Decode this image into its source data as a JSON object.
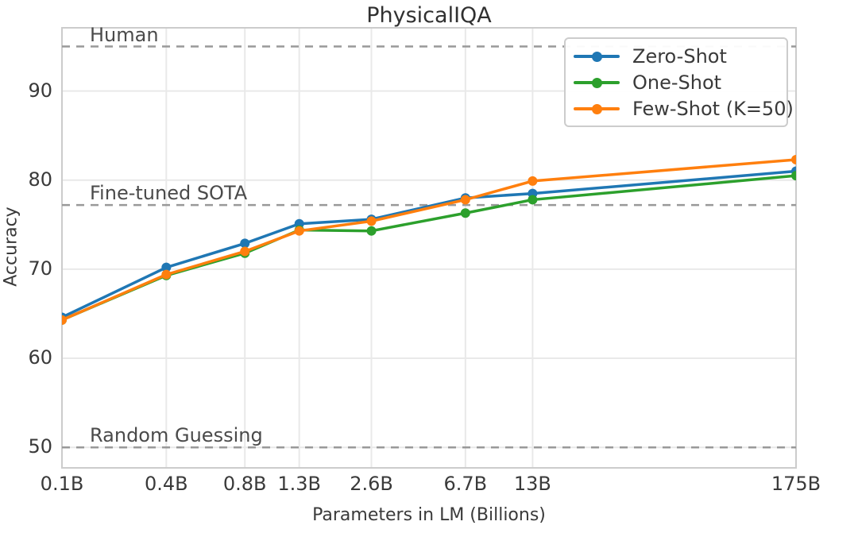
{
  "chart_data": {
    "type": "line",
    "title": "PhysicalIQA",
    "xlabel": "Parameters in LM (Billions)",
    "ylabel": "Accuracy",
    "x_scale": "log",
    "x": [
      0.125,
      0.35,
      0.76,
      1.3,
      2.65,
      6.7,
      13,
      175
    ],
    "x_tick_labels": [
      "0.1B",
      "0.4B",
      "0.8B",
      "1.3B",
      "2.6B",
      "6.7B",
      "13B",
      "175B"
    ],
    "y_ticks": [
      50,
      60,
      70,
      80,
      90
    ],
    "ylim": [
      47.7,
      97.1
    ],
    "grid": true,
    "legend_position": "upper right",
    "series": [
      {
        "name": "Zero-Shot",
        "color": "#1f77b4",
        "values": [
          64.6,
          70.2,
          72.9,
          75.1,
          75.6,
          78.0,
          78.5,
          81.0
        ]
      },
      {
        "name": "One-Shot",
        "color": "#2ca02c",
        "values": [
          64.3,
          69.3,
          71.8,
          74.4,
          74.3,
          76.3,
          77.8,
          80.5
        ]
      },
      {
        "name": "Few-Shot (K=50)",
        "color": "#ff7f0e",
        "values": [
          64.3,
          69.4,
          72.0,
          74.3,
          75.4,
          77.8,
          79.9,
          82.3
        ]
      }
    ],
    "reference_lines": [
      {
        "label": "Human",
        "y": 95.0,
        "style": "dashed",
        "color": "#999999"
      },
      {
        "label": "Fine-tuned SOTA",
        "y": 77.2,
        "style": "dashed",
        "color": "#999999"
      },
      {
        "label": "Random Guessing",
        "y": 50.0,
        "style": "dashed",
        "color": "#999999"
      }
    ],
    "colors": {
      "grid": "#e9e9e9",
      "spine": "#cccccc",
      "background": "#ffffff"
    }
  }
}
